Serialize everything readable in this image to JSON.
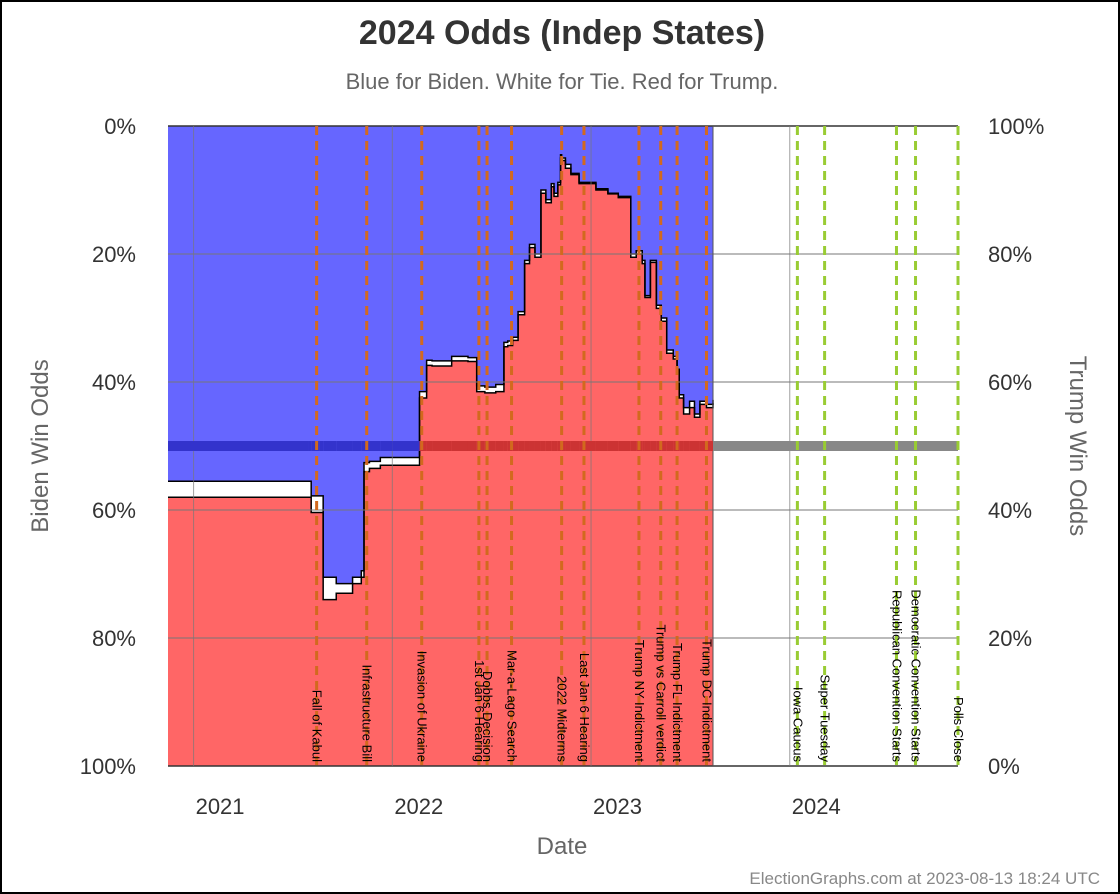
{
  "chart_data": {
    "type": "area",
    "title": "2024 Odds (Indep States)",
    "subtitle": "Blue for Biden. White for Tie. Red for Trump.",
    "xlabel": "Date",
    "ylabel_left": "Biden Win Odds",
    "ylabel_right": "Trump Win Odds",
    "xlim": [
      "2020-11-15",
      "2024-11-05"
    ],
    "ylim": [
      0,
      100
    ],
    "x_tick_labels": [
      "2021",
      "2022",
      "2023",
      "2024"
    ],
    "x_tick_dates": [
      "2021-01-01",
      "2022-01-01",
      "2023-01-01",
      "2024-01-01"
    ],
    "y_left_ticks": [
      "0%",
      "20%",
      "40%",
      "60%",
      "80%",
      "100%"
    ],
    "y_right_ticks": [
      "100%",
      "80%",
      "60%",
      "40%",
      "20%",
      "0%"
    ],
    "grid": true,
    "colors": {
      "biden": "#6666ff",
      "trump": "#ff6666",
      "tie": "#ffffff",
      "line": "#000000",
      "past_event": "#d2691e",
      "future_event": "#99cc33",
      "midline_past_biden": "#3333cc",
      "midline_past_trump": "#cc3333",
      "midline_future": "#888888"
    },
    "data_end_date": "2023-08-13",
    "series": [
      {
        "name": "Biden",
        "description_note": "",
        "x": [
          "2020-11-15",
          "2021-07-31",
          "2021-08-05",
          "2021-08-20",
          "2021-08-27",
          "2021-09-20",
          "2021-10-20",
          "2021-11-05",
          "2021-11-10",
          "2021-11-20",
          "2021-12-10",
          "2022-01-01",
          "2022-02-20",
          "2022-03-05",
          "2022-03-15",
          "2022-04-20",
          "2022-05-20",
          "2022-06-05",
          "2022-06-20",
          "2022-07-10",
          "2022-07-25",
          "2022-08-01",
          "2022-08-10",
          "2022-08-20",
          "2022-09-01",
          "2022-09-10",
          "2022-09-20",
          "2022-10-01",
          "2022-10-10",
          "2022-10-20",
          "2022-10-25",
          "2022-11-01",
          "2022-11-06",
          "2022-11-08",
          "2022-11-15",
          "2022-11-25",
          "2022-12-10",
          "2023-01-10",
          "2023-02-01",
          "2023-02-20",
          "2023-03-15",
          "2023-03-25",
          "2023-04-05",
          "2023-04-10",
          "2023-04-20",
          "2023-05-01",
          "2023-05-10",
          "2023-05-20",
          "2023-06-01",
          "2023-06-08",
          "2023-06-12",
          "2023-06-20",
          "2023-07-01",
          "2023-07-10",
          "2023-07-20",
          "2023-08-01",
          "2023-08-13"
        ],
        "values": [
          55.5,
          55.5,
          57.8,
          57.8,
          70.5,
          71.5,
          70.5,
          69.5,
          52.6,
          52.4,
          51.8,
          51.8,
          41.5,
          36.6,
          36.7,
          36.0,
          36.2,
          40.6,
          40.8,
          40.4,
          33.8,
          33.6,
          33.0,
          29.0,
          21.0,
          18.5,
          20.0,
          10.0,
          11.5,
          9.0,
          10.5,
          8.8,
          4.5,
          5.0,
          6.0,
          7.4,
          8.8,
          9.8,
          10.5,
          11.0,
          20.0,
          19.5,
          21.0,
          26.5,
          21.0,
          28.0,
          30.0,
          35.0,
          36.0,
          38.0,
          42.0,
          44.0,
          43.0,
          45.0,
          43.0,
          43.5,
          42.8
        ]
      },
      {
        "name": "Trump",
        "description_note": "",
        "x": [
          "2020-11-15",
          "2021-07-31",
          "2021-08-05",
          "2021-08-20",
          "2021-08-27",
          "2021-09-20",
          "2021-10-20",
          "2021-11-05",
          "2021-11-10",
          "2021-11-20",
          "2021-12-10",
          "2022-01-01",
          "2022-02-20",
          "2022-03-05",
          "2022-03-15",
          "2022-04-20",
          "2022-05-20",
          "2022-06-05",
          "2022-06-20",
          "2022-07-10",
          "2022-07-25",
          "2022-08-01",
          "2022-08-10",
          "2022-08-20",
          "2022-09-01",
          "2022-09-10",
          "2022-09-20",
          "2022-10-01",
          "2022-10-10",
          "2022-10-20",
          "2022-10-25",
          "2022-11-01",
          "2022-11-06",
          "2022-11-08",
          "2022-11-15",
          "2022-11-25",
          "2022-12-10",
          "2023-01-10",
          "2023-02-01",
          "2023-02-20",
          "2023-03-15",
          "2023-03-25",
          "2023-04-05",
          "2023-04-10",
          "2023-04-20",
          "2023-05-01",
          "2023-05-10",
          "2023-05-20",
          "2023-06-01",
          "2023-06-08",
          "2023-06-12",
          "2023-06-20",
          "2023-07-01",
          "2023-07-10",
          "2023-07-20",
          "2023-08-01",
          "2023-08-13"
        ],
        "values": [
          42.0,
          42.0,
          39.6,
          39.6,
          26.0,
          27.0,
          28.5,
          29.5,
          46.0,
          46.5,
          47.0,
          47.0,
          57.5,
          62.6,
          62.5,
          63.3,
          63.2,
          58.5,
          58.3,
          58.5,
          65.5,
          65.7,
          66.5,
          70.5,
          78.5,
          81.0,
          79.5,
          89.5,
          88.0,
          90.5,
          89.0,
          90.8,
          95.0,
          94.6,
          93.4,
          92.4,
          91.0,
          90.0,
          89.4,
          88.8,
          79.5,
          80.0,
          78.5,
          73.2,
          78.7,
          71.5,
          69.5,
          64.5,
          63.6,
          61.5,
          57.5,
          55.0,
          56.0,
          54.5,
          56.5,
          56.0,
          56.7
        ]
      }
    ],
    "events_past": [
      {
        "label": "Fall of Kabul",
        "date": "2021-08-15"
      },
      {
        "label": "Infrastructure Bill",
        "date": "2021-11-15"
      },
      {
        "label": "Invasion of Ukraine",
        "date": "2022-02-24"
      },
      {
        "label": "1st Jan 6 Hearing",
        "date": "2022-06-09"
      },
      {
        "label": "Dobbs Decision",
        "date": "2022-06-24"
      },
      {
        "label": "Mar-a-Lago Search",
        "date": "2022-08-08"
      },
      {
        "label": "2022 Midterms",
        "date": "2022-11-08"
      },
      {
        "label": "Last Jan 6 Hearing",
        "date": "2022-12-19"
      },
      {
        "label": "Trump NY Indictment",
        "date": "2023-03-30"
      },
      {
        "label": "Trump vs Carroll verdict",
        "date": "2023-05-09"
      },
      {
        "label": "Trump FL Indictment",
        "date": "2023-06-08"
      },
      {
        "label": "Trump DC Indictment",
        "date": "2023-08-01"
      }
    ],
    "events_future": [
      {
        "label": "Iowa Caucus",
        "date": "2024-01-15"
      },
      {
        "label": "Super Tuesday",
        "date": "2024-03-05"
      },
      {
        "label": "Republican Convention Starts",
        "date": "2024-07-15"
      },
      {
        "label": "Democratic Convention Starts",
        "date": "2024-08-19"
      },
      {
        "label": "Polls Close",
        "date": "2024-11-05"
      }
    ]
  },
  "footer": {
    "credit": "ElectionGraphs.com at 2023-08-13 18:24 UTC"
  }
}
